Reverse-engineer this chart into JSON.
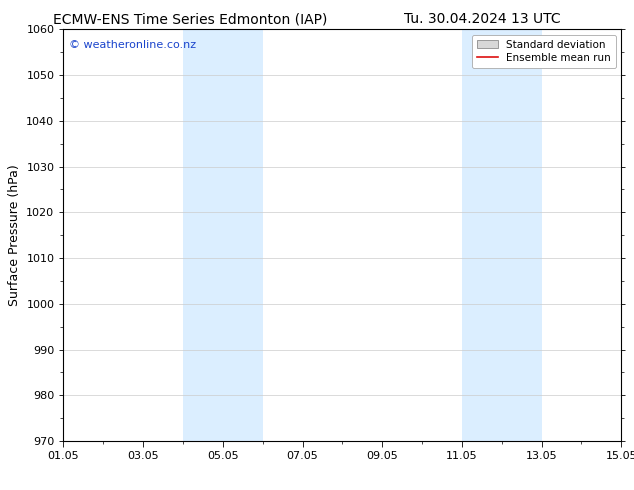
{
  "title_left": "ECMW-ENS Time Series Edmonton (IAP)",
  "title_right": "Tu. 30.04.2024 13 UTC",
  "ylabel": "Surface Pressure (hPa)",
  "ylim": [
    970,
    1060
  ],
  "yticks": [
    970,
    980,
    990,
    1000,
    1010,
    1020,
    1030,
    1040,
    1050,
    1060
  ],
  "xlim": [
    0,
    14
  ],
  "xtick_positions": [
    0,
    2,
    4,
    6,
    8,
    10,
    12,
    14
  ],
  "xtick_labels": [
    "01.05",
    "03.05",
    "05.05",
    "07.05",
    "09.05",
    "11.05",
    "13.05",
    "15.05"
  ],
  "shaded_bands": [
    {
      "xmin": 3.0,
      "xmax": 5.0
    },
    {
      "xmin": 10.0,
      "xmax": 12.0
    }
  ],
  "shade_color": "#dbeeff",
  "shade_alpha": 1.0,
  "watermark_text": "© weatheronline.co.nz",
  "watermark_color": "#1a44cc",
  "legend_entries": [
    "Standard deviation",
    "Ensemble mean run"
  ],
  "legend_patch_color": "#d8d8d8",
  "legend_patch_edge": "#999999",
  "legend_line_color": "#dd1111",
  "bg_color": "#ffffff",
  "grid_color": "#cccccc",
  "spine_color": "#000000",
  "tick_color": "#000000",
  "title_fontsize": 10,
  "ylabel_fontsize": 9,
  "tick_fontsize": 8,
  "watermark_fontsize": 8,
  "legend_fontsize": 7.5
}
